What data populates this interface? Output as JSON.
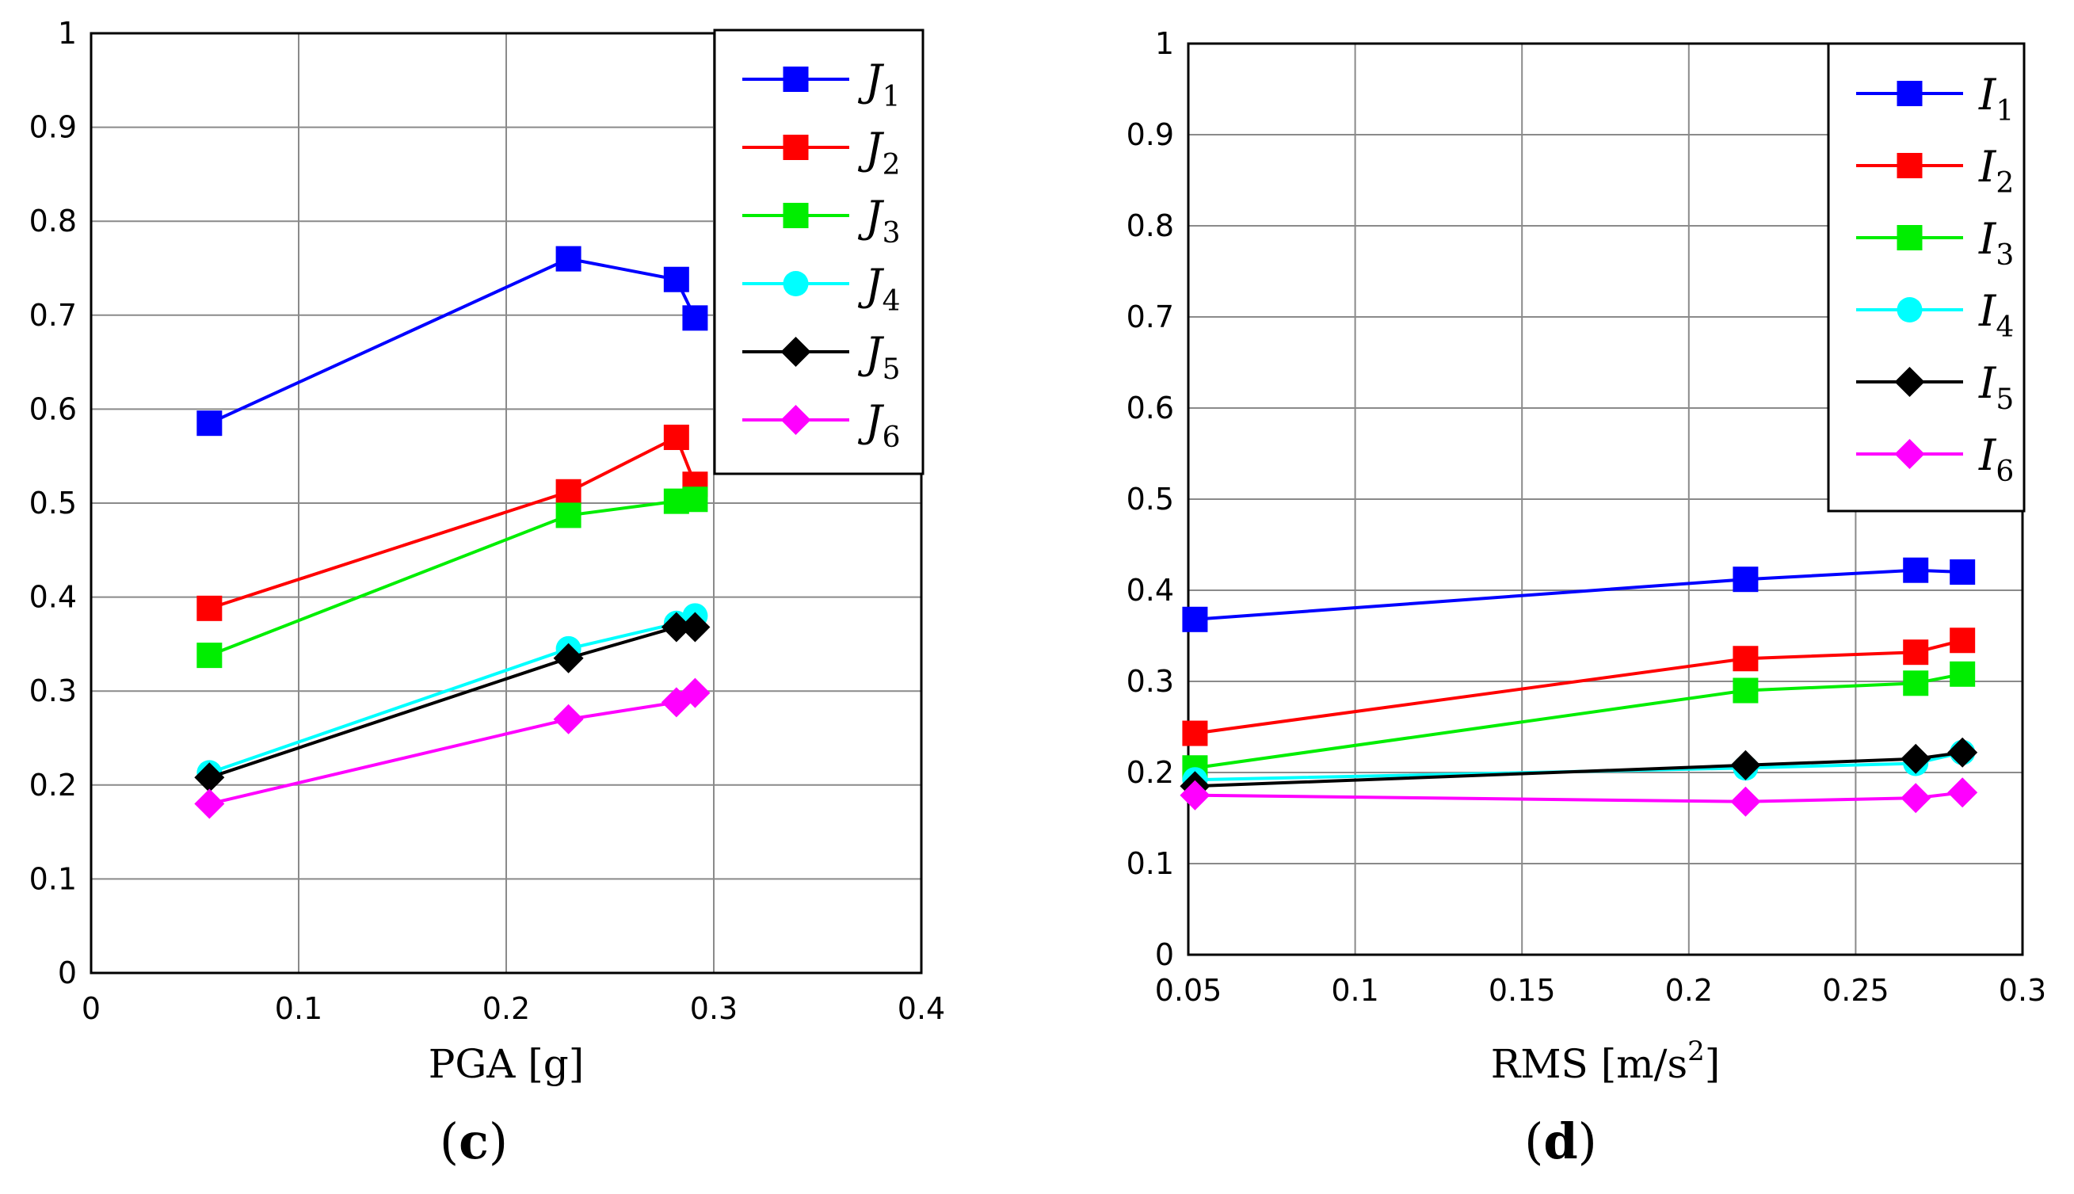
{
  "chart_data": [
    {
      "type": "line",
      "panel_label": "c",
      "xlabel": "PGA [g]",
      "ylabel": "",
      "xlim": [
        0,
        0.4
      ],
      "ylim": [
        0,
        1
      ],
      "xticks": [
        0,
        0.1,
        0.2,
        0.3,
        0.4
      ],
      "xtick_labels": [
        "0",
        "0.1",
        "0.2",
        "0.3",
        "0.4"
      ],
      "yticks": [
        0,
        0.1,
        0.2,
        0.3,
        0.4,
        0.5,
        0.6,
        0.7,
        0.8,
        0.9,
        1
      ],
      "ytick_labels": [
        "0",
        "0.1",
        "0.2",
        "0.3",
        "0.4",
        "0.5",
        "0.6",
        "0.7",
        "0.8",
        "0.9",
        "1"
      ],
      "grid": true,
      "legend_position": "top-right",
      "series": [
        {
          "name": "J1",
          "letter": "J",
          "sub": "1",
          "color": "#0000ff",
          "marker": "square",
          "x": [
            0.057,
            0.23,
            0.282,
            0.291
          ],
          "y": [
            0.585,
            0.76,
            0.738,
            0.697
          ]
        },
        {
          "name": "J2",
          "letter": "J",
          "sub": "2",
          "color": "#ff0000",
          "marker": "square",
          "x": [
            0.057,
            0.23,
            0.282,
            0.291
          ],
          "y": [
            0.388,
            0.512,
            0.57,
            0.52
          ]
        },
        {
          "name": "J3",
          "letter": "J",
          "sub": "3",
          "color": "#00ee00",
          "marker": "square",
          "x": [
            0.057,
            0.23,
            0.282,
            0.291
          ],
          "y": [
            0.338,
            0.487,
            0.502,
            0.504
          ]
        },
        {
          "name": "J4",
          "letter": "J",
          "sub": "4",
          "color": "#00ffff",
          "marker": "circle",
          "x": [
            0.057,
            0.23,
            0.282,
            0.291
          ],
          "y": [
            0.213,
            0.345,
            0.372,
            0.38
          ]
        },
        {
          "name": "J5",
          "letter": "J",
          "sub": "5",
          "color": "#000000",
          "marker": "diamond",
          "x": [
            0.057,
            0.23,
            0.282,
            0.291
          ],
          "y": [
            0.208,
            0.335,
            0.368,
            0.368
          ]
        },
        {
          "name": "J6",
          "letter": "J",
          "sub": "6",
          "color": "#ff00ff",
          "marker": "diamond",
          "x": [
            0.057,
            0.23,
            0.282,
            0.291
          ],
          "y": [
            0.18,
            0.27,
            0.288,
            0.298
          ]
        }
      ]
    },
    {
      "type": "line",
      "panel_label": "d",
      "xlabel": "RMS [m/s",
      "xlabel_sup": "2",
      "xlabel_tail": "]",
      "ylabel": "",
      "xlim": [
        0.05,
        0.3
      ],
      "ylim": [
        0,
        1
      ],
      "xticks": [
        0.05,
        0.1,
        0.15,
        0.2,
        0.25,
        0.3
      ],
      "xtick_labels": [
        "0.05",
        "0.1",
        "0.15",
        "0.2",
        "0.25",
        "0.3"
      ],
      "yticks": [
        0,
        0.1,
        0.2,
        0.3,
        0.4,
        0.5,
        0.6,
        0.7,
        0.8,
        0.9,
        1
      ],
      "ytick_labels": [
        "0",
        "0.1",
        "0.2",
        "0.3",
        "0.4",
        "0.5",
        "0.6",
        "0.7",
        "0.8",
        "0.9",
        "1"
      ],
      "grid": true,
      "legend_position": "top-right",
      "series": [
        {
          "name": "I1",
          "letter": "I",
          "sub": "1",
          "color": "#0000ff",
          "marker": "square",
          "x": [
            0.052,
            0.217,
            0.268,
            0.282
          ],
          "y": [
            0.368,
            0.412,
            0.422,
            0.42
          ]
        },
        {
          "name": "I2",
          "letter": "I",
          "sub": "2",
          "color": "#ff0000",
          "marker": "square",
          "x": [
            0.052,
            0.217,
            0.268,
            0.282
          ],
          "y": [
            0.243,
            0.325,
            0.332,
            0.345
          ]
        },
        {
          "name": "I3",
          "letter": "I",
          "sub": "3",
          "color": "#00ee00",
          "marker": "square",
          "x": [
            0.052,
            0.217,
            0.268,
            0.282
          ],
          "y": [
            0.205,
            0.29,
            0.298,
            0.308
          ]
        },
        {
          "name": "I4",
          "letter": "I",
          "sub": "4",
          "color": "#00ffff",
          "marker": "circle",
          "x": [
            0.052,
            0.217,
            0.268,
            0.282
          ],
          "y": [
            0.192,
            0.205,
            0.21,
            0.222
          ]
        },
        {
          "name": "I5",
          "letter": "I",
          "sub": "5",
          "color": "#000000",
          "marker": "diamond",
          "x": [
            0.052,
            0.217,
            0.268,
            0.282
          ],
          "y": [
            0.185,
            0.208,
            0.215,
            0.222
          ]
        },
        {
          "name": "I6",
          "letter": "I",
          "sub": "6",
          "color": "#ff00ff",
          "marker": "diamond",
          "x": [
            0.052,
            0.217,
            0.268,
            0.282
          ],
          "y": [
            0.175,
            0.168,
            0.172,
            0.178
          ]
        }
      ]
    }
  ]
}
